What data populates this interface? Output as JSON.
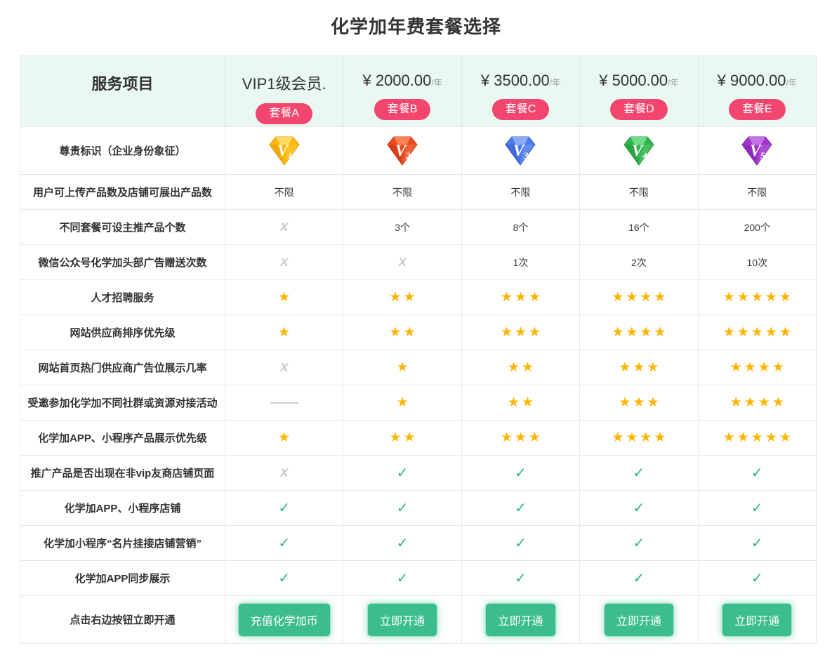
{
  "page": {
    "title": "化学加年费套餐选择"
  },
  "colors": {
    "badge": "#F3466E",
    "star": "#FFB400",
    "check": "#2EB872",
    "x_mark": "#C3C8CD",
    "dash": "#C9CED2",
    "button_bg": "#3CBD8D",
    "header_bg": "#E9F8F0",
    "border": "#E4E9E9",
    "price_per": "#999999",
    "text_dark": "#333333"
  },
  "glyphs": {
    "star": "★",
    "check": "✓",
    "x": "X"
  },
  "gems": [
    {
      "level": "1",
      "main": "#FFB908",
      "light": "#FFD960",
      "dark": "#DC9A00"
    },
    {
      "level": "2",
      "main": "#EE4A1E",
      "light": "#FF8257",
      "dark": "#C23512"
    },
    {
      "level": "3",
      "main": "#4E7BEE",
      "light": "#8AA9F6",
      "dark": "#3557C0"
    },
    {
      "level": "4",
      "main": "#2FB54D",
      "light": "#72DB8B",
      "dark": "#1E9238"
    },
    {
      "level": "5",
      "main": "#A234CE",
      "light": "#C670E6",
      "dark": "#7C1FA6"
    }
  ],
  "table": {
    "service_header": "服务项目",
    "plans": [
      {
        "badge": "套餐A",
        "price_main": "VIP1级会员.",
        "price_per": ""
      },
      {
        "badge": "套餐B",
        "price_main": "¥ 2000.00",
        "price_per": "/年"
      },
      {
        "badge": "套餐C",
        "price_main": "¥ 3500.00",
        "price_per": "/年"
      },
      {
        "badge": "套餐D",
        "price_main": "¥ 5000.00",
        "price_per": "/年"
      },
      {
        "badge": "套餐E",
        "price_main": "¥ 9000.00",
        "price_per": "/年"
      }
    ],
    "rows": [
      {
        "label": "尊贵标识（企业身份象征）",
        "cells": [
          {
            "t": "gem",
            "v": 1
          },
          {
            "t": "gem",
            "v": 2
          },
          {
            "t": "gem",
            "v": 3
          },
          {
            "t": "gem",
            "v": 4
          },
          {
            "t": "gem",
            "v": 5
          }
        ]
      },
      {
        "label": "用户可上传产品数及店铺可展出产品数",
        "cells": [
          {
            "t": "text",
            "v": "不限"
          },
          {
            "t": "text",
            "v": "不限"
          },
          {
            "t": "text",
            "v": "不限"
          },
          {
            "t": "text",
            "v": "不限"
          },
          {
            "t": "text",
            "v": "不限"
          }
        ]
      },
      {
        "label": "不同套餐可设主推产品个数",
        "cells": [
          {
            "t": "x"
          },
          {
            "t": "text",
            "v": "3个"
          },
          {
            "t": "text",
            "v": "8个"
          },
          {
            "t": "text",
            "v": "16个"
          },
          {
            "t": "text",
            "v": "200个"
          }
        ]
      },
      {
        "label": "微信公众号化学加头部广告赠送次数",
        "cells": [
          {
            "t": "x"
          },
          {
            "t": "x"
          },
          {
            "t": "text",
            "v": "1次"
          },
          {
            "t": "text",
            "v": "2次"
          },
          {
            "t": "text",
            "v": "10次"
          }
        ]
      },
      {
        "label": "人才招聘服务",
        "cells": [
          {
            "t": "star",
            "v": 1
          },
          {
            "t": "star",
            "v": 2
          },
          {
            "t": "star",
            "v": 3
          },
          {
            "t": "star",
            "v": 4
          },
          {
            "t": "star",
            "v": 5
          }
        ]
      },
      {
        "label": "网站供应商排序优先级",
        "cells": [
          {
            "t": "star",
            "v": 1
          },
          {
            "t": "star",
            "v": 2
          },
          {
            "t": "star",
            "v": 3
          },
          {
            "t": "star",
            "v": 4
          },
          {
            "t": "star",
            "v": 5
          }
        ]
      },
      {
        "label": "网站首页热门供应商广告位展示几率",
        "cells": [
          {
            "t": "x"
          },
          {
            "t": "star",
            "v": 1
          },
          {
            "t": "star",
            "v": 2
          },
          {
            "t": "star",
            "v": 3
          },
          {
            "t": "star",
            "v": 4
          }
        ]
      },
      {
        "label": "受邀参加化学加不同社群或资源对接活动",
        "cells": [
          {
            "t": "dash"
          },
          {
            "t": "star",
            "v": 1
          },
          {
            "t": "star",
            "v": 2
          },
          {
            "t": "star",
            "v": 3
          },
          {
            "t": "star",
            "v": 4
          }
        ]
      },
      {
        "label": "化学加APP、小程序产品展示优先级",
        "cells": [
          {
            "t": "star",
            "v": 1
          },
          {
            "t": "star",
            "v": 2
          },
          {
            "t": "star",
            "v": 3
          },
          {
            "t": "star",
            "v": 4
          },
          {
            "t": "star",
            "v": 5
          }
        ]
      },
      {
        "label": "推广产品是否出现在非vip友商店铺页面",
        "cells": [
          {
            "t": "x"
          },
          {
            "t": "check"
          },
          {
            "t": "check"
          },
          {
            "t": "check"
          },
          {
            "t": "check"
          }
        ]
      },
      {
        "label": "化学加APP、小程序店铺",
        "cells": [
          {
            "t": "check"
          },
          {
            "t": "check"
          },
          {
            "t": "check"
          },
          {
            "t": "check"
          },
          {
            "t": "check"
          }
        ]
      },
      {
        "label": "化学加小程序“名片挂接店铺营销”",
        "cells": [
          {
            "t": "check"
          },
          {
            "t": "check"
          },
          {
            "t": "check"
          },
          {
            "t": "check"
          },
          {
            "t": "check"
          }
        ]
      },
      {
        "label": "化学加APP同步展示",
        "cells": [
          {
            "t": "check"
          },
          {
            "t": "check"
          },
          {
            "t": "check"
          },
          {
            "t": "check"
          },
          {
            "t": "check"
          }
        ]
      },
      {
        "label": "点击右边按钮立即开通",
        "cells": [
          {
            "t": "button",
            "v": "充值化学加币"
          },
          {
            "t": "button",
            "v": "立即开通"
          },
          {
            "t": "button",
            "v": "立即开通"
          },
          {
            "t": "button",
            "v": "立即开通"
          },
          {
            "t": "button",
            "v": "立即开通"
          }
        ]
      }
    ]
  }
}
